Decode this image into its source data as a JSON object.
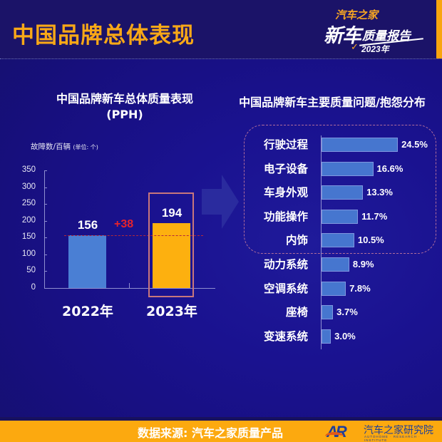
{
  "header": {
    "title": "中国品牌总体表现",
    "logo": {
      "top": "汽车之家",
      "main": "新车",
      "sub": "质量报告",
      "year": "2023年",
      "check": "✓"
    }
  },
  "left_chart": {
    "title_line1": "中国品牌新车总体质量表现",
    "title_line2": "(PPH)",
    "y_label": "故障数/百辆",
    "y_unit": "(单位: 个)",
    "diff_label": "+38",
    "yticks": [
      "350",
      "300",
      "250",
      "200",
      "150",
      "100",
      "50",
      "0"
    ]
  },
  "right_chart": {
    "title": "中国品牌新车主要质量问题/抱怨分布"
  },
  "footer": {
    "source": "数据来源: 汽车之家质量产品",
    "logo_mark": "AR",
    "institute": "汽车之家研究院",
    "institute_en": "AUTOHOME · RESEARCH · INSTITUTE"
  },
  "colors": {
    "accent_orange": "#f8a817",
    "bar_2022": "#4a7fd4",
    "bar_2023": "#fdb00f",
    "hbar": "#4676cf",
    "diff_red": "#e8232c",
    "background": "#1a1290"
  },
  "chart_data": [
    {
      "type": "bar",
      "title": "中国品牌新车总体质量表现 (PPH)",
      "xlabel": "",
      "ylabel": "故障数/百辆 (单位: 个)",
      "categories": [
        "2022年",
        "2023年"
      ],
      "values": [
        156,
        194
      ],
      "value_labels": [
        "156",
        "194"
      ],
      "ylim": [
        0,
        350
      ],
      "yticks": [
        0,
        50,
        100,
        150,
        200,
        250,
        300,
        350
      ],
      "annotations": [
        {
          "text": "+38",
          "note": "increase from 2022 to 2023"
        }
      ],
      "grid": false,
      "legend": null
    },
    {
      "type": "bar",
      "orientation": "horizontal",
      "title": "中国品牌新车主要质量问题/抱怨分布",
      "categories": [
        "行驶过程",
        "电子设备",
        "车身外观",
        "功能操作",
        "内饰",
        "动力系统",
        "空调系统",
        "座椅",
        "变速系统"
      ],
      "values": [
        24.5,
        16.6,
        13.3,
        11.7,
        10.5,
        8.9,
        7.8,
        3.7,
        3.0
      ],
      "value_labels": [
        "24.5%",
        "16.6%",
        "13.3%",
        "11.7%",
        "10.5%",
        "8.9%",
        "7.8%",
        "3.7%",
        "3.0%"
      ],
      "unit": "%",
      "highlighted_top": 5,
      "grid": false,
      "legend": null
    }
  ]
}
